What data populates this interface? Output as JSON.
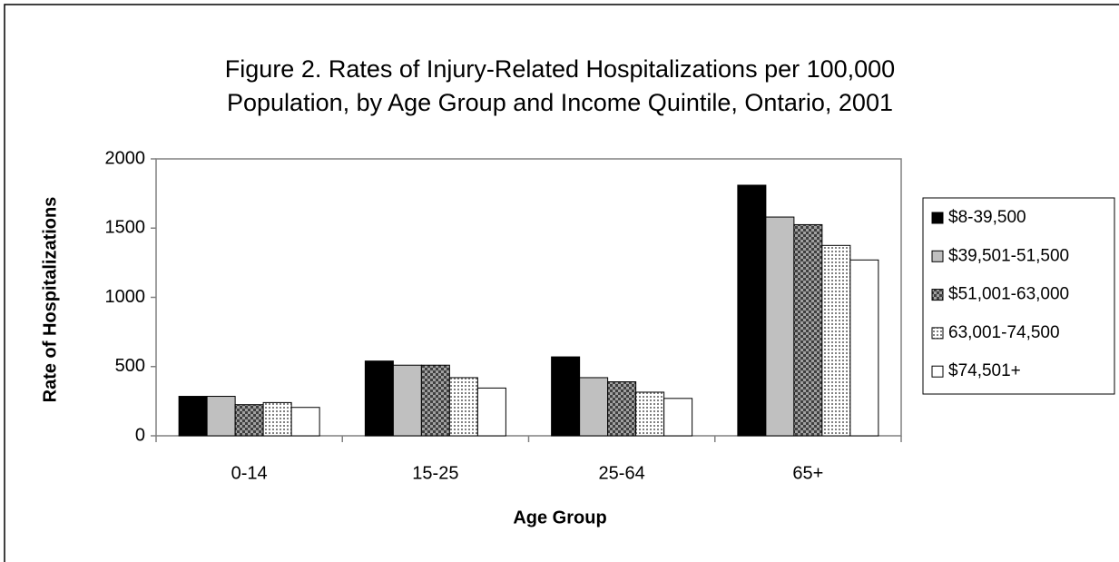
{
  "chart_data": {
    "type": "bar",
    "title": [
      "Figure 2. Rates of Injury-Related Hospitalizations per 100,000",
      "Population, by Age Group and Income Quintile, Ontario, 2001"
    ],
    "x_label": "Age Group",
    "y_label": "Rate of Hospitalizations",
    "categories": [
      "0-14",
      "15-25",
      "25-64",
      "65+"
    ],
    "series": [
      {
        "name": "$8-39,500",
        "color": "#000000",
        "pattern": "solid",
        "values": [
          285,
          540,
          570,
          1810
        ]
      },
      {
        "name": "$39,501-51,500",
        "color": "#c0c0c0",
        "pattern": "solid",
        "values": [
          285,
          510,
          420,
          1580
        ]
      },
      {
        "name": "$51,001-63,000",
        "color": "#808080",
        "pattern": "crosshatch",
        "values": [
          225,
          510,
          390,
          1525
        ]
      },
      {
        "name": "63,001-74,500",
        "color": "#ffffff",
        "pattern": "dots",
        "values": [
          240,
          420,
          315,
          1375
        ]
      },
      {
        "name": "$74,501+",
        "color": "#ffffff",
        "pattern": "solid",
        "values": [
          205,
          345,
          270,
          1270
        ]
      }
    ],
    "ylim": [
      0,
      2000
    ],
    "yticks": [
      0,
      500,
      1000,
      1500,
      2000
    ],
    "grid": false,
    "legend": "right"
  }
}
